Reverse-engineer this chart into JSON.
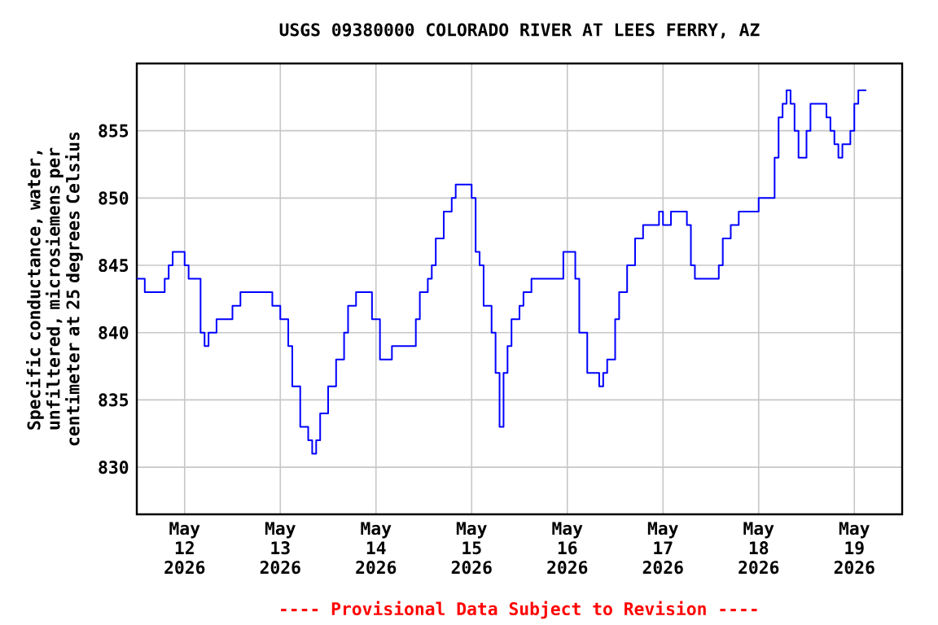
{
  "chart_data": {
    "type": "step",
    "title": "USGS 09380000 COLORADO RIVER AT LEES FERRY, AZ",
    "ylabel": "Specific conductance, water, unfiltered, microsiemens per centimeter at 25 degrees Celsius",
    "annotations": [
      "---- Provisional Data Subject to Revision ----"
    ],
    "xlim": [
      "2026-05-11T12:00",
      "2026-05-19T12:00"
    ],
    "xticks": [
      {
        "value": "2026-05-12",
        "label": "May 12 2026"
      },
      {
        "value": "2026-05-13",
        "label": "May 13 2026"
      },
      {
        "value": "2026-05-14",
        "label": "May 14 2026"
      },
      {
        "value": "2026-05-15",
        "label": "May 15 2026"
      },
      {
        "value": "2026-05-16",
        "label": "May 16 2026"
      },
      {
        "value": "2026-05-17",
        "label": "May 17 2026"
      },
      {
        "value": "2026-05-18",
        "label": "May 18 2026"
      },
      {
        "value": "2026-05-19",
        "label": "May 19 2026"
      }
    ],
    "ylim": [
      826.5,
      860
    ],
    "yticks": [
      830,
      835,
      840,
      845,
      850,
      855
    ],
    "grid": true,
    "series": [
      {
        "color": "#0000ff",
        "x": [
          "2026-05-11T12:00",
          "2026-05-11T14:00",
          "2026-05-11T19:00",
          "2026-05-11T20:00",
          "2026-05-11T21:00",
          "2026-05-11T23:00",
          "2026-05-12T00:00",
          "2026-05-12T01:00",
          "2026-05-12T04:00",
          "2026-05-12T05:00",
          "2026-05-12T06:00",
          "2026-05-12T08:00",
          "2026-05-12T12:00",
          "2026-05-12T14:00",
          "2026-05-12T20:00",
          "2026-05-12T22:00",
          "2026-05-13T00:00",
          "2026-05-13T02:00",
          "2026-05-13T03:00",
          "2026-05-13T05:00",
          "2026-05-13T07:00",
          "2026-05-13T08:00",
          "2026-05-13T09:00",
          "2026-05-13T10:00",
          "2026-05-13T12:00",
          "2026-05-13T14:00",
          "2026-05-13T16:00",
          "2026-05-13T17:00",
          "2026-05-13T19:00",
          "2026-05-13T22:00",
          "2026-05-13T23:00",
          "2026-05-14T01:00",
          "2026-05-14T04:00",
          "2026-05-14T08:00",
          "2026-05-14T10:00",
          "2026-05-14T11:00",
          "2026-05-14T13:00",
          "2026-05-14T14:00",
          "2026-05-14T15:00",
          "2026-05-14T17:00",
          "2026-05-14T19:00",
          "2026-05-14T20:00",
          "2026-05-14T23:00",
          "2026-05-15T00:00",
          "2026-05-15T01:00",
          "2026-05-15T02:00",
          "2026-05-15T03:00",
          "2026-05-15T05:00",
          "2026-05-15T06:00",
          "2026-05-15T07:00",
          "2026-05-15T08:00",
          "2026-05-15T09:00",
          "2026-05-15T10:00",
          "2026-05-15T12:00",
          "2026-05-15T13:00",
          "2026-05-15T15:00",
          "2026-05-15T20:00",
          "2026-05-15T23:00",
          "2026-05-16T01:00",
          "2026-05-16T02:00",
          "2026-05-16T03:00",
          "2026-05-16T05:00",
          "2026-05-16T07:00",
          "2026-05-16T08:00",
          "2026-05-16T09:00",
          "2026-05-16T10:00",
          "2026-05-16T12:00",
          "2026-05-16T13:00",
          "2026-05-16T15:00",
          "2026-05-16T17:00",
          "2026-05-16T19:00",
          "2026-05-16T23:00",
          "2026-05-17T00:00",
          "2026-05-17T02:00",
          "2026-05-17T05:00",
          "2026-05-17T06:00",
          "2026-05-17T07:00",
          "2026-05-17T08:00",
          "2026-05-17T13:00",
          "2026-05-17T14:00",
          "2026-05-17T15:00",
          "2026-05-17T17:00",
          "2026-05-17T19:00",
          "2026-05-17T23:00",
          "2026-05-18T00:00",
          "2026-05-18T02:00",
          "2026-05-18T04:00",
          "2026-05-18T05:00",
          "2026-05-18T06:00",
          "2026-05-18T07:00",
          "2026-05-18T08:00",
          "2026-05-18T09:00",
          "2026-05-18T10:00",
          "2026-05-18T11:00",
          "2026-05-18T12:00",
          "2026-05-18T13:00",
          "2026-05-18T16:00",
          "2026-05-18T17:00",
          "2026-05-18T18:00",
          "2026-05-18T19:00",
          "2026-05-18T20:00",
          "2026-05-18T21:00",
          "2026-05-18T22:00",
          "2026-05-18T23:00",
          "2026-05-19T00:00",
          "2026-05-19T01:00",
          "2026-05-19T03:00"
        ],
        "values": [
          844,
          843,
          844,
          845,
          846,
          846,
          845,
          844,
          840,
          839,
          840,
          841,
          842,
          843,
          843,
          842,
          841,
          839,
          836,
          833,
          832,
          831,
          832,
          834,
          836,
          838,
          840,
          842,
          843,
          843,
          841,
          838,
          839,
          839,
          841,
          843,
          844,
          845,
          847,
          849,
          850,
          851,
          851,
          850,
          846,
          845,
          842,
          840,
          837,
          833,
          837,
          839,
          841,
          842,
          843,
          844,
          844,
          846,
          846,
          844,
          840,
          837,
          837,
          836,
          837,
          838,
          841,
          843,
          845,
          847,
          848,
          849,
          848,
          849,
          849,
          848,
          845,
          844,
          844,
          845,
          847,
          848,
          849,
          849,
          850,
          850,
          853,
          856,
          857,
          858,
          857,
          855,
          853,
          853,
          855,
          857,
          857,
          856,
          855,
          854,
          853,
          854,
          854,
          855,
          857,
          858,
          858
        ]
      }
    ]
  }
}
